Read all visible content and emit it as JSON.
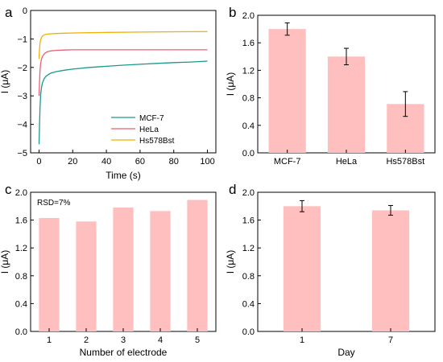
{
  "colors": {
    "bar": "#ffbfbf",
    "axis": "#000000",
    "mcf7": "#1a9a8c",
    "hela": "#e96078",
    "hs578bst": "#f0b000"
  },
  "chart_data": [
    {
      "panel": "a",
      "type": "line",
      "xlabel": "Time (s)",
      "ylabel": "I (μA)",
      "xlim": [
        -5,
        105
      ],
      "ylim": [
        -5,
        0
      ],
      "xticks": [
        "0",
        "20",
        "40",
        "60",
        "80",
        "100"
      ],
      "yticks": [
        "0",
        "−1",
        "−2",
        "−3",
        "−4",
        "−5"
      ],
      "legend_position": "lower-right",
      "series": [
        {
          "name": "MCF-7",
          "x": [
            0,
            0.3,
            0.6,
            1,
            1.5,
            2,
            3,
            4,
            5,
            7,
            10,
            15,
            20,
            30,
            40,
            50,
            60,
            70,
            80,
            90,
            100
          ],
          "y": [
            -4.7,
            -4.0,
            -3.4,
            -2.95,
            -2.7,
            -2.55,
            -2.4,
            -2.32,
            -2.27,
            -2.2,
            -2.15,
            -2.1,
            -2.06,
            -2.0,
            -1.96,
            -1.92,
            -1.89,
            -1.86,
            -1.83,
            -1.81,
            -1.78
          ]
        },
        {
          "name": "HeLa",
          "x": [
            0,
            0.3,
            0.6,
            1,
            1.5,
            2,
            3,
            4,
            5,
            7,
            10,
            15,
            20,
            30,
            40,
            60,
            80,
            100
          ],
          "y": [
            -3.0,
            -2.5,
            -2.1,
            -1.85,
            -1.7,
            -1.62,
            -1.53,
            -1.48,
            -1.45,
            -1.42,
            -1.4,
            -1.39,
            -1.38,
            -1.38,
            -1.38,
            -1.38,
            -1.38,
            -1.38
          ]
        },
        {
          "name": "Hs578Bst",
          "x": [
            0,
            0.3,
            0.6,
            1,
            1.5,
            2,
            3,
            4,
            5,
            7,
            10,
            15,
            20,
            30,
            40,
            60,
            80,
            100
          ],
          "y": [
            -1.7,
            -1.35,
            -1.15,
            -1.02,
            -0.95,
            -0.9,
            -0.86,
            -0.84,
            -0.83,
            -0.82,
            -0.81,
            -0.8,
            -0.79,
            -0.78,
            -0.77,
            -0.76,
            -0.75,
            -0.74
          ]
        }
      ]
    },
    {
      "panel": "b",
      "type": "bar",
      "xlabel": "",
      "ylabel": "I (μA)",
      "ylim": [
        0,
        2.0
      ],
      "yticks": [
        "0.0",
        "0.4",
        "0.8",
        "1.2",
        "1.6",
        "2.0"
      ],
      "categories": [
        "MCF-7",
        "HeLa",
        "Hs578Bst"
      ],
      "values": [
        1.8,
        1.4,
        0.71
      ],
      "errors": [
        0.09,
        0.12,
        0.18
      ]
    },
    {
      "panel": "c",
      "type": "bar",
      "xlabel": "Number of electrode",
      "ylabel": "I (μA)",
      "ylim": [
        0,
        2.0
      ],
      "yticks": [
        "0.0",
        "0.4",
        "0.8",
        "1.2",
        "1.6",
        "2.0"
      ],
      "categories": [
        "1",
        "2",
        "3",
        "4",
        "5"
      ],
      "values": [
        1.63,
        1.58,
        1.78,
        1.73,
        1.89
      ],
      "annotation": "RSD=7%"
    },
    {
      "panel": "d",
      "type": "bar",
      "xlabel": "Day",
      "ylabel": "I (μA)",
      "ylim": [
        0,
        2.0
      ],
      "yticks": [
        "0.0",
        "0.4",
        "0.8",
        "1.2",
        "1.6",
        "2.0"
      ],
      "categories": [
        "1",
        "7"
      ],
      "values": [
        1.8,
        1.74
      ],
      "errors": [
        0.08,
        0.07
      ]
    }
  ]
}
